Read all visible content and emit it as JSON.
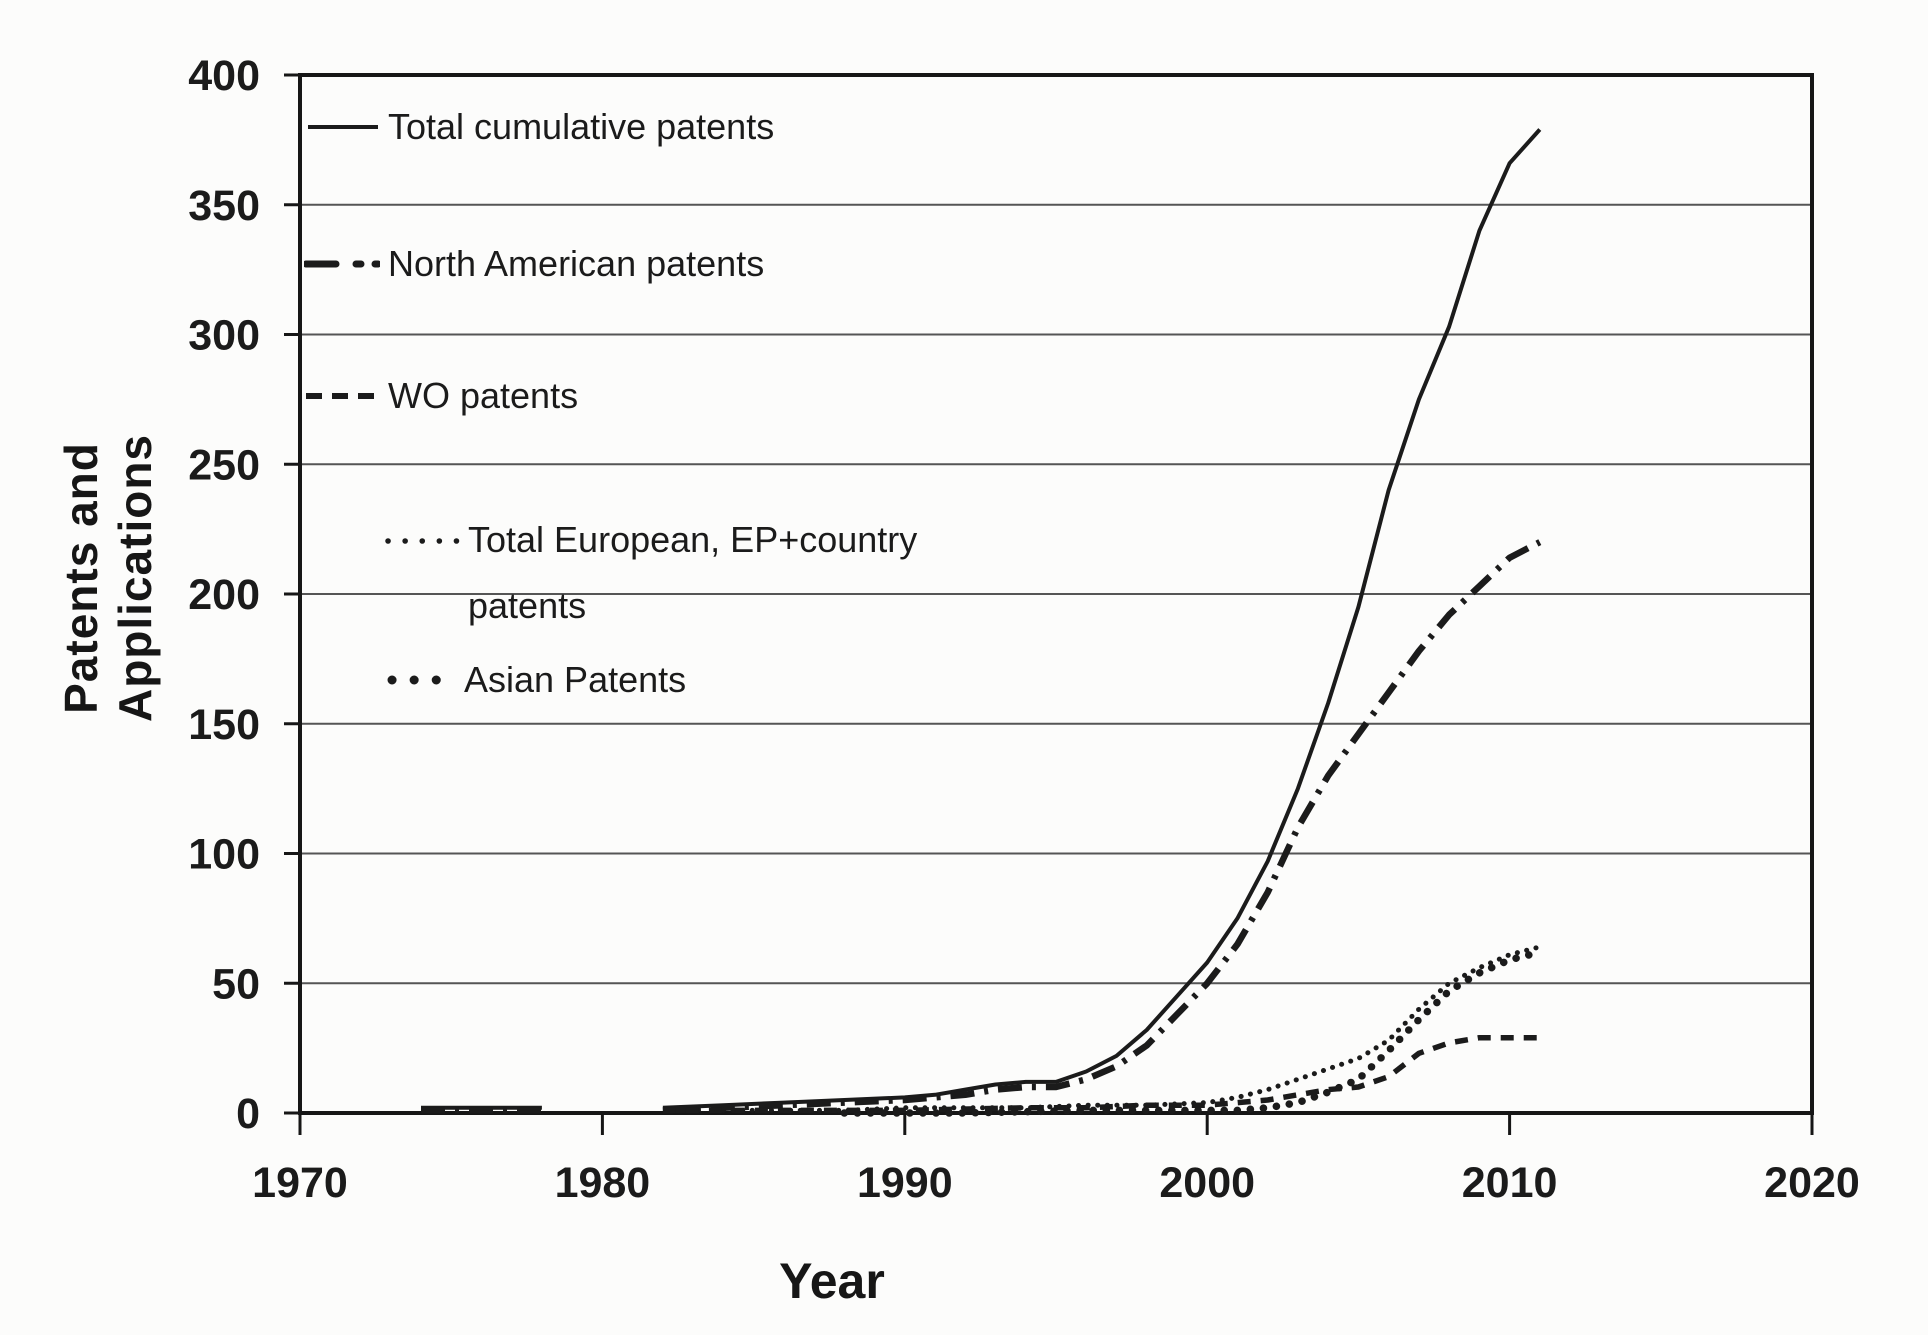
{
  "figure": {
    "background": "#fcfcfb",
    "ink": "#1b1b1b",
    "frame_color": "#161616",
    "grid_color": "#555555"
  },
  "chart_data": {
    "type": "line",
    "title": "",
    "xlabel": "Year",
    "ylabel": "Patents and Applications",
    "xlim": [
      1970,
      2020
    ],
    "ylim": [
      0,
      400
    ],
    "x_ticks": [
      1970,
      1980,
      1990,
      2000,
      2010,
      2020
    ],
    "y_ticks": [
      0,
      50,
      100,
      150,
      200,
      250,
      300,
      350,
      400
    ],
    "grid": "horizontal gridlines at 50-350",
    "legend_position": "inside top-left",
    "series": [
      {
        "name": "Total cumulative patents",
        "style": "solid",
        "points": [
          [
            1974,
            2
          ],
          [
            1978,
            2
          ],
          null,
          [
            1982,
            2
          ],
          [
            1984,
            3
          ],
          [
            1986,
            4
          ],
          [
            1988,
            5
          ],
          [
            1990,
            6
          ],
          [
            1991,
            7
          ],
          [
            1992,
            9
          ],
          [
            1993,
            11
          ],
          [
            1994,
            12
          ],
          [
            1995,
            12
          ],
          [
            1996,
            16
          ],
          [
            1997,
            22
          ],
          [
            1998,
            32
          ],
          [
            1999,
            45
          ],
          [
            2000,
            58
          ],
          [
            2001,
            75
          ],
          [
            2002,
            97
          ],
          [
            2003,
            125
          ],
          [
            2004,
            158
          ],
          [
            2005,
            195
          ],
          [
            2006,
            240
          ],
          [
            2007,
            275
          ],
          [
            2008,
            303
          ],
          [
            2009,
            340
          ],
          [
            2010,
            366
          ],
          [
            2011,
            379
          ]
        ]
      },
      {
        "name": "North American patents",
        "style": "dash-dot",
        "points": [
          [
            1974,
            1
          ],
          [
            1978,
            1
          ],
          null,
          [
            1982,
            1
          ],
          [
            1984,
            2
          ],
          [
            1986,
            3
          ],
          [
            1988,
            4
          ],
          [
            1990,
            5
          ],
          [
            1992,
            7
          ],
          [
            1993,
            9
          ],
          [
            1994,
            10
          ],
          [
            1995,
            10
          ],
          [
            1996,
            13
          ],
          [
            1997,
            18
          ],
          [
            1998,
            26
          ],
          [
            1999,
            38
          ],
          [
            2000,
            50
          ],
          [
            2001,
            65
          ],
          [
            2002,
            85
          ],
          [
            2003,
            110
          ],
          [
            2004,
            130
          ],
          [
            2005,
            146
          ],
          [
            2006,
            162
          ],
          [
            2007,
            178
          ],
          [
            2008,
            192
          ],
          [
            2009,
            203
          ],
          [
            2010,
            214
          ],
          [
            2011,
            220
          ]
        ]
      },
      {
        "name": "WO patents",
        "style": "dashed",
        "points": [
          [
            1982,
            1
          ],
          [
            1986,
            1
          ],
          [
            1990,
            1
          ],
          [
            1994,
            2
          ],
          [
            1996,
            2
          ],
          [
            1998,
            3
          ],
          [
            2000,
            3
          ],
          [
            2002,
            5
          ],
          [
            2003,
            7
          ],
          [
            2004,
            9
          ],
          [
            2005,
            10
          ],
          [
            2006,
            14
          ],
          [
            2007,
            23
          ],
          [
            2008,
            27
          ],
          [
            2009,
            29
          ],
          [
            2010,
            29
          ],
          [
            2011,
            29
          ]
        ]
      },
      {
        "name": "Total European, EP+country patents",
        "style": "fine-dotted",
        "points": [
          [
            1984,
            1
          ],
          [
            1988,
            1
          ],
          [
            1990,
            2
          ],
          [
            1992,
            2
          ],
          [
            1994,
            2
          ],
          [
            1996,
            3
          ],
          [
            1998,
            3
          ],
          [
            2000,
            4
          ],
          [
            2001,
            6
          ],
          [
            2002,
            9
          ],
          [
            2003,
            13
          ],
          [
            2004,
            17
          ],
          [
            2005,
            21
          ],
          [
            2006,
            28
          ],
          [
            2007,
            40
          ],
          [
            2008,
            50
          ],
          [
            2009,
            56
          ],
          [
            2010,
            61
          ],
          [
            2011,
            64
          ]
        ]
      },
      {
        "name": "Asian Patents",
        "style": "bold-dotted",
        "points": [
          [
            1988,
            0
          ],
          [
            1992,
            0
          ],
          [
            1996,
            1
          ],
          [
            1998,
            1
          ],
          [
            2000,
            1
          ],
          [
            2001,
            1
          ],
          [
            2002,
            2
          ],
          [
            2003,
            4
          ],
          [
            2004,
            8
          ],
          [
            2005,
            13
          ],
          [
            2006,
            24
          ],
          [
            2007,
            36
          ],
          [
            2008,
            47
          ],
          [
            2009,
            54
          ],
          [
            2010,
            59
          ],
          [
            2011,
            62
          ]
        ]
      }
    ]
  },
  "legend": {
    "items": [
      {
        "label": "Total cumulative patents"
      },
      {
        "label": "North American patents"
      },
      {
        "label": "WO patents"
      },
      {
        "label": "Total European, EP+country",
        "label2": "patents"
      },
      {
        "label": "Asian Patents"
      }
    ]
  }
}
